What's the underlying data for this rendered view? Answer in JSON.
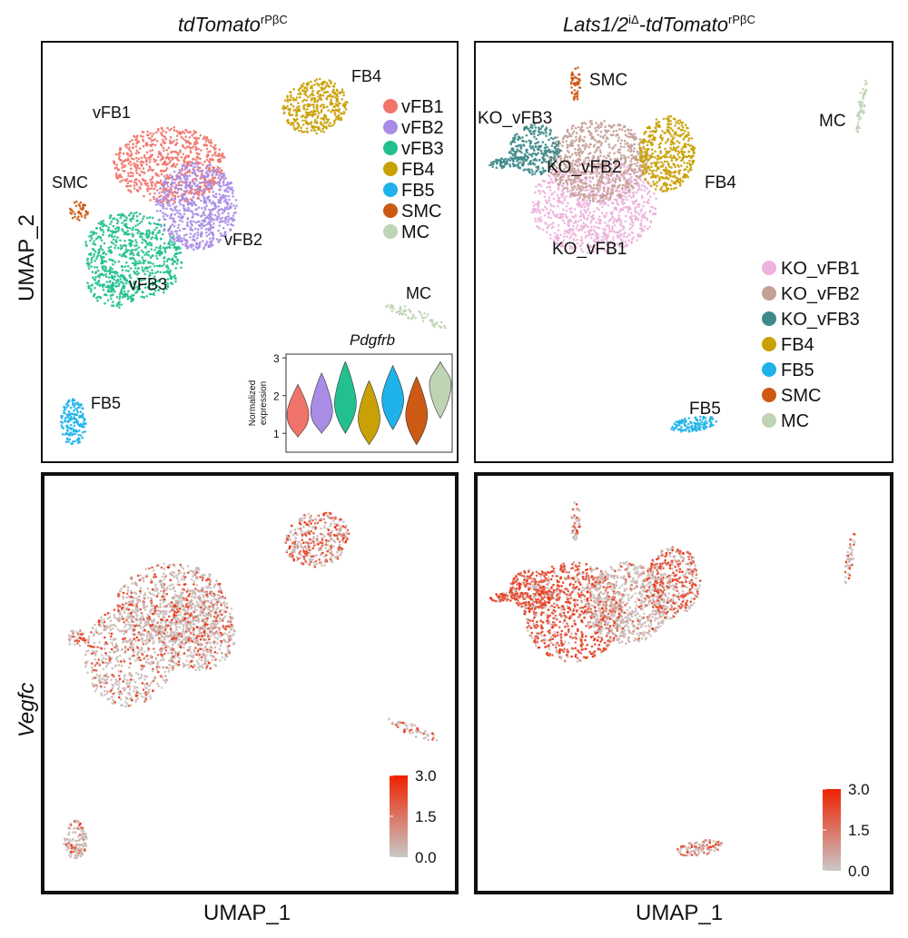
{
  "figure": {
    "title_left": "tdTomato",
    "title_left_sup": "rPβC",
    "title_right_a": "Lats1/2",
    "title_right_sup1": "iΔ",
    "title_right_b": "-tdTomato",
    "title_right_sup2": "rPβC",
    "ylabel_top": "UMAP_2",
    "ylabel_bottom": "Vegfc",
    "xlabel_left": "UMAP_1",
    "xlabel_right": "UMAP_1"
  },
  "chart_data": [
    {
      "type": "scatter",
      "panel": "umap-clusters-control",
      "xlabel": "",
      "ylabel": "UMAP_2",
      "clusters": [
        {
          "name": "vFB1",
          "color": "#F0746A",
          "label": "vFB1"
        },
        {
          "name": "vFB2",
          "color": "#A98CE6",
          "label": "vFB2"
        },
        {
          "name": "vFB3",
          "color": "#22C08F",
          "label": "vFB3"
        },
        {
          "name": "FB4",
          "color": "#C9A006",
          "label": "FB4"
        },
        {
          "name": "FB5",
          "color": "#1FB2EA",
          "label": "FB5"
        },
        {
          "name": "SMC",
          "color": "#CC5914",
          "label": "SMC"
        },
        {
          "name": "MC",
          "color": "#BFD4B4",
          "label": "MC"
        }
      ],
      "legend": [
        "vFB1",
        "vFB2",
        "vFB3",
        "FB4",
        "FB5",
        "SMC",
        "MC"
      ],
      "inset": {
        "type": "violin",
        "title": "Pdgfrb",
        "ylabel_line1": "Normalized",
        "ylabel_line2": "expression",
        "ylim": [
          0.5,
          3.1
        ],
        "yticks": [
          1,
          2,
          3
        ],
        "categories": [
          "vFB1",
          "vFB2",
          "vFB3",
          "FB4",
          "FB5",
          "SMC",
          "MC"
        ],
        "medians": [
          1.5,
          1.6,
          1.8,
          1.4,
          1.9,
          1.5,
          2.3
        ],
        "ranges": [
          [
            0.9,
            2.3
          ],
          [
            1.0,
            2.6
          ],
          [
            1.0,
            2.9
          ],
          [
            0.7,
            2.4
          ],
          [
            1.1,
            2.8
          ],
          [
            0.7,
            2.5
          ],
          [
            1.4,
            2.9
          ]
        ]
      }
    },
    {
      "type": "scatter",
      "panel": "umap-clusters-ko",
      "clusters": [
        {
          "name": "KO_vFB1",
          "color": "#ECB3DC",
          "label": "KO_vFB1"
        },
        {
          "name": "KO_vFB2",
          "color": "#C4A097",
          "label": "KO_vFB2"
        },
        {
          "name": "KO_vFB3",
          "color": "#3D8A8A",
          "label": "KO_vFB3"
        },
        {
          "name": "FB4",
          "color": "#C9A006",
          "label": "FB4"
        },
        {
          "name": "FB5",
          "color": "#1FB2EA",
          "label": "FB5"
        },
        {
          "name": "SMC",
          "color": "#CC5914",
          "label": "SMC"
        },
        {
          "name": "MC",
          "color": "#BFD4B4",
          "label": "MC"
        }
      ],
      "legend": [
        "KO_vFB1",
        "KO_vFB2",
        "KO_vFB3",
        "FB4",
        "FB5",
        "SMC",
        "MC"
      ]
    },
    {
      "type": "scatter",
      "panel": "vegfc-feature-control",
      "feature": "Vegfc",
      "xlabel": "UMAP_1",
      "colorbar": {
        "ticks": [
          "3.0",
          "1.5",
          "0.0"
        ],
        "low": "#C8C8C8",
        "high": "#EE2200"
      }
    },
    {
      "type": "scatter",
      "panel": "vegfc-feature-ko",
      "feature": "Vegfc",
      "xlabel": "UMAP_1",
      "colorbar": {
        "ticks": [
          "3.0",
          "1.5",
          "0.0"
        ],
        "low": "#C8C8C8",
        "high": "#EE2200"
      }
    }
  ]
}
